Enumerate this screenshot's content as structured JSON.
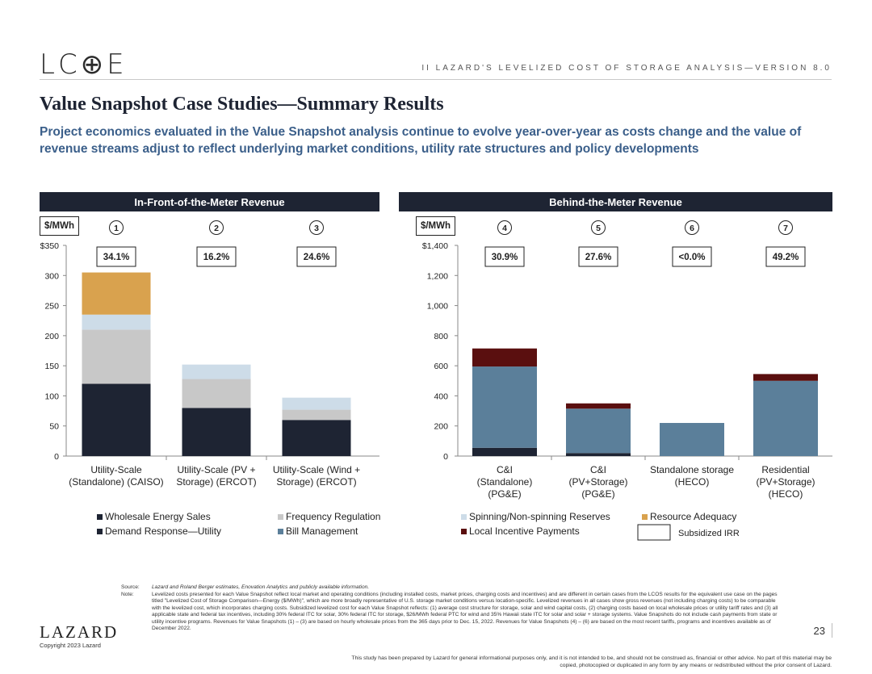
{
  "header": {
    "logo": "LC⊕E",
    "report_title": "II   LAZARD'S LEVELIZED COST OF STORAGE ANALYSIS—VERSION 8.0"
  },
  "page": {
    "title": "Value Snapshot Case Studies—Summary Results",
    "subtitle": "Project economics evaluated in the Value Snapshot analysis continue to evolve year-over-year as costs change and the value of revenue streams adjust to reflect underlying market conditions, utility rate structures and policy developments"
  },
  "colors": {
    "Wholesale Energy Sales": "#1e2433",
    "Demand Response—Utility": "#1e2433",
    "Frequency Regulation": "#c8c8c8",
    "Bill Management": "#5b7f9a",
    "Spinning/Non-spinning Reserves": "#cddce8",
    "Resource Adequacy": "#d9a24e",
    "Local Incentive Payments": "#5a0f0f"
  },
  "chart_data": [
    {
      "type": "bar",
      "stacked": true,
      "panel_title": "In-Front-of-the-Meter Revenue",
      "unit_label": "$/MWh",
      "ylim": [
        0,
        350
      ],
      "yticks": [
        "$350",
        "300",
        "250",
        "200",
        "150",
        "100",
        "50",
        "0"
      ],
      "ytick_values": [
        350,
        300,
        250,
        200,
        150,
        100,
        50,
        0
      ],
      "categories": [
        "Utility-Scale (Standalone) (CAISO)",
        "Utility-Scale (PV + Storage) (ERCOT)",
        "Utility-Scale (Wind + Storage) (ERCOT)"
      ],
      "category_lines": [
        [
          "Utility-Scale",
          "(Standalone) (CAISO)"
        ],
        [
          "Utility-Scale (PV +",
          "Storage) (ERCOT)"
        ],
        [
          "Utility-Scale (Wind +",
          "Storage) (ERCOT)"
        ]
      ],
      "case_numbers": [
        "1",
        "2",
        "3"
      ],
      "irr": [
        "34.1%",
        "16.2%",
        "24.6%"
      ],
      "series": [
        {
          "name": "Wholesale Energy Sales",
          "values": [
            120,
            80,
            60
          ]
        },
        {
          "name": "Frequency Regulation",
          "values": [
            90,
            48,
            17
          ]
        },
        {
          "name": "Spinning/Non-spinning Reserves",
          "values": [
            25,
            24,
            20
          ]
        },
        {
          "name": "Resource Adequacy",
          "values": [
            70,
            0,
            0
          ]
        }
      ]
    },
    {
      "type": "bar",
      "stacked": true,
      "panel_title": "Behind-the-Meter Revenue",
      "unit_label": "$/MWh",
      "ylim": [
        0,
        1400
      ],
      "yticks": [
        "$1,400",
        "1,200",
        "1,000",
        "800",
        "600",
        "400",
        "200",
        "0"
      ],
      "ytick_values": [
        1400,
        1200,
        1000,
        800,
        600,
        400,
        200,
        0
      ],
      "categories": [
        "C&I (Standalone) (PG&E)",
        "C&I (PV+Storage) (PG&E)",
        "Standalone storage (HECO)",
        "Residential (PV+Storage) (HECO)"
      ],
      "category_lines": [
        [
          "C&I",
          "(Standalone)",
          "(PG&E)"
        ],
        [
          "C&I",
          "(PV+Storage)",
          "(PG&E)"
        ],
        [
          "Standalone storage",
          "(HECO)"
        ],
        [
          "Residential",
          "(PV+Storage)",
          "(HECO)"
        ]
      ],
      "case_numbers": [
        "4",
        "5",
        "6",
        "7"
      ],
      "irr": [
        "30.9%",
        "27.6%",
        "<0.0%",
        "49.2%"
      ],
      "series": [
        {
          "name": "Demand Response—Utility",
          "values": [
            55,
            20,
            0,
            0
          ]
        },
        {
          "name": "Bill Management",
          "values": [
            540,
            295,
            220,
            500
          ]
        },
        {
          "name": "Local Incentive Payments",
          "values": [
            120,
            35,
            0,
            45
          ]
        }
      ]
    }
  ],
  "legend": [
    {
      "name": "Wholesale Energy Sales",
      "color": "#1e2433"
    },
    {
      "name": "Frequency Regulation",
      "color": "#c8c8c8"
    },
    {
      "name": "Spinning/Non-spinning Reserves",
      "color": "#cddce8"
    },
    {
      "name": "Resource Adequacy",
      "color": "#d9a24e"
    },
    {
      "name": "Demand Response—Utility",
      "color": "#1e2433"
    },
    {
      "name": "Bill Management",
      "color": "#5b7f9a"
    },
    {
      "name": "Local Incentive Payments",
      "color": "#5a0f0f"
    },
    {
      "name": "Subsidized IRR",
      "color": "box"
    }
  ],
  "footer": {
    "source_label": "Source:",
    "source_text": "Lazard and Roland Berger estimates, Enovation Analytics and publicly available information.",
    "note_label": "Note:",
    "note_text": "Levelized costs presented for each Value Snapshot reflect local market and operating conditions (including installed costs, market prices, charging costs and incentives) and are different in certain cases from the LCOS results for the equivalent use case on the pages titled \"Levelized Cost of Storage Comparison—Energy ($/MWh)\", which are more broadly representative of U.S. storage market conditions versus location-specific. Levelized revenues in all cases show gross revenues (not including charging costs) to be comparable with the levelized cost, which incorporates charging costs. Subsidized levelized cost for each Value Snapshot reflects: (1) average cost structure for storage, solar and wind capital costs, (2) charging costs based on local wholesale prices or utility tariff rates and (3) all applicable state and federal tax incentives, including 30% federal ITC for solar, 30% federal ITC for storage, $26/MWh federal PTC for wind and 35% Hawaii state ITC for solar and solar + storage systems. Value Snapshots do not include cash payments from state or utility incentive programs. Revenues for Value Snapshots (1) – (3) are based on hourly wholesale prices from the 365 days prior to Dec. 15, 2022. Revenues for Value Snapshots (4) – (6) are based on the most recent tariffs, programs and incentives available as of December 2022.",
    "brand": "LAZARD",
    "copyright": "Copyright 2023 Lazard",
    "page_number": "23",
    "disclaimer": "This study has been prepared by Lazard for general informational purposes only, and it is not intended to be, and should not be construed as, financial or other advice. No part of this material may be copied, photocopied or duplicated in any form by any means or redistributed without the prior consent of Lazard."
  }
}
